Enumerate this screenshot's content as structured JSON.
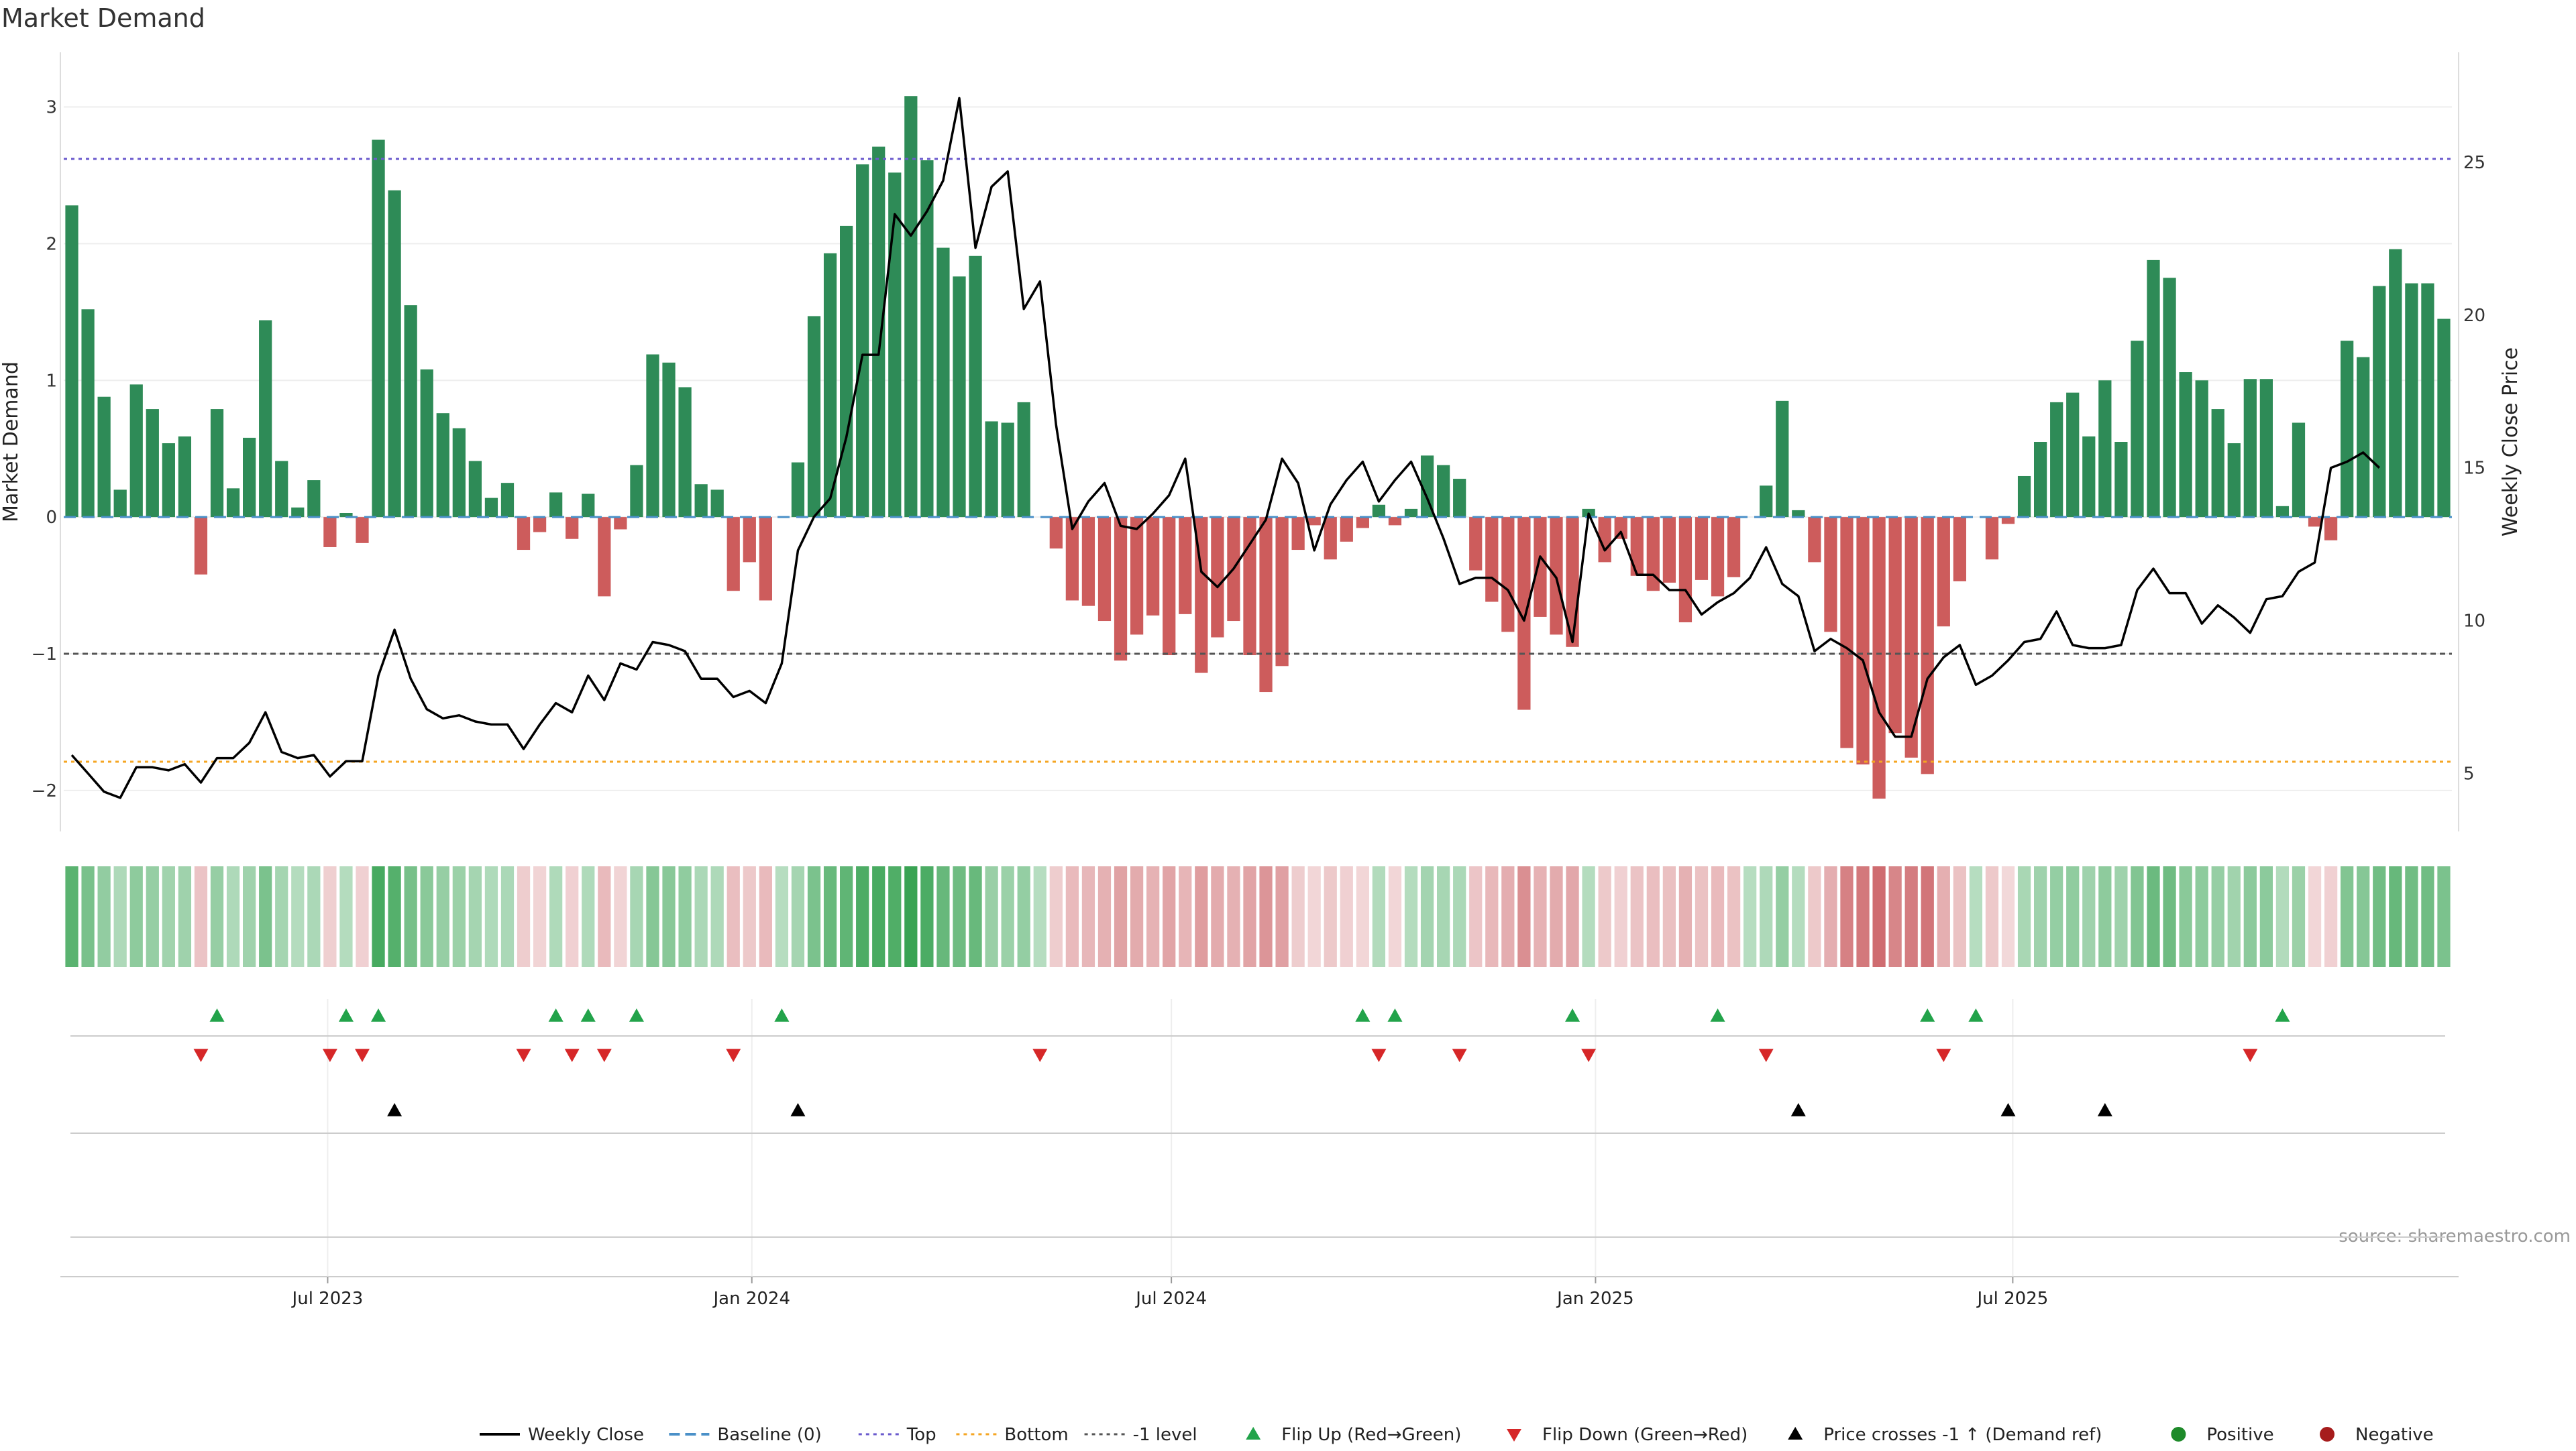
{
  "title": "Market Demand",
  "source_note": "source: sharemaestro.com",
  "colors": {
    "positive_bar": "#2e8b57",
    "negative_bar": "#cd5c5c",
    "price_line": "#000000",
    "top_level": "#6a5acd",
    "bottom_level": "#f5a623",
    "minus1_level": "#555555",
    "baseline": "#4a90c8",
    "flip_up": "#22a34a",
    "flip_down": "#d62728",
    "cross": "#000000",
    "positive_dot": "#1e8a2a",
    "negative_dot": "#a61c1c"
  },
  "legend": [
    {
      "label": "Weekly Close",
      "kind": "line",
      "color": "#000000"
    },
    {
      "label": "Baseline (0)",
      "kind": "dash",
      "color": "#4a90c8"
    },
    {
      "label": "Top",
      "kind": "dot",
      "color": "#6a5acd"
    },
    {
      "label": "Bottom",
      "kind": "dot",
      "color": "#f5a623"
    },
    {
      "label": "-1 level",
      "kind": "dot",
      "color": "#555555"
    },
    {
      "label": "Flip Up (Red→Green)",
      "kind": "tri-up",
      "color": "#22a34a"
    },
    {
      "label": "Flip Down (Green→Red)",
      "kind": "tri-down",
      "color": "#d62728"
    },
    {
      "label": "Price crosses -1 ↑ (Demand ref)",
      "kind": "tri-up",
      "color": "#000000"
    },
    {
      "label": "Positive",
      "kind": "circle",
      "color": "#1e8a2a"
    },
    {
      "label": "Negative",
      "kind": "circle",
      "color": "#a61c1c"
    }
  ],
  "chart_data": {
    "type": "bar",
    "frequency": "weekly",
    "x_start": "2023-03-12",
    "x_tick_labels": [
      "Jul 2023",
      "Jan 2024",
      "Jul 2024",
      "Jan 2025",
      "Jul 2025"
    ],
    "x_tick_dates": [
      "2023-07-01",
      "2024-01-01",
      "2024-07-01",
      "2025-01-01",
      "2025-07-01"
    ],
    "ylabel": "Market Demand",
    "y2label": "Weekly Close Price",
    "ylim": [
      -2.3,
      3.4
    ],
    "y_ticks": [
      -2,
      -1,
      0,
      1,
      2,
      3
    ],
    "y2lim": [
      3.1,
      28.6
    ],
    "y2_ticks": [
      5,
      10,
      15,
      20,
      25
    ],
    "levels": {
      "top": 2.62,
      "bottom": -1.79,
      "minus1": -1.0,
      "baseline": 0
    },
    "grid": true,
    "series": [
      {
        "name": "Market Demand",
        "kind": "bar",
        "values": [
          2.28,
          1.52,
          0.88,
          0.2,
          0.97,
          0.79,
          0.54,
          0.59,
          -0.42,
          0.79,
          0.21,
          0.58,
          1.44,
          0.41,
          0.07,
          0.27,
          -0.22,
          0.03,
          -0.19,
          2.76,
          2.39,
          1.55,
          1.08,
          0.76,
          0.65,
          0.41,
          0.14,
          0.25,
          -0.24,
          -0.11,
          0.18,
          -0.16,
          0.17,
          -0.58,
          -0.09,
          0.38,
          1.19,
          1.13,
          0.95,
          0.24,
          0.2,
          -0.54,
          -0.33,
          -0.61,
          0.0,
          0.4,
          1.47,
          1.93,
          2.13,
          2.58,
          2.71,
          2.52,
          3.08,
          2.61,
          1.97,
          1.76,
          1.91,
          0.7,
          0.69,
          0.84,
          0.0,
          -0.23,
          -0.61,
          -0.65,
          -0.76,
          -1.05,
          -0.86,
          -0.72,
          -1.01,
          -0.71,
          -1.14,
          -0.88,
          -0.76,
          -1.01,
          -1.28,
          -1.09,
          -0.24,
          -0.06,
          -0.31,
          -0.18,
          -0.08,
          0.09,
          -0.06,
          0.06,
          0.45,
          0.38,
          0.28,
          -0.39,
          -0.62,
          -0.84,
          -1.41,
          -0.73,
          -0.86,
          -0.95,
          0.06,
          -0.33,
          -0.16,
          -0.43,
          -0.54,
          -0.48,
          -0.77,
          -0.46,
          -0.58,
          -0.44,
          0.0,
          0.23,
          0.85,
          0.05,
          -0.33,
          -0.84,
          -1.69,
          -1.81,
          -2.06,
          -1.58,
          -1.76,
          -1.88,
          -0.8,
          -0.47,
          0.0,
          -0.31,
          -0.05,
          0.3,
          0.55,
          0.84,
          0.91,
          0.59,
          1.0,
          0.55,
          1.29,
          1.88,
          1.75,
          1.06,
          1.0,
          0.79,
          0.54,
          1.01,
          1.01,
          0.08,
          0.69,
          -0.07,
          -0.17,
          1.29,
          1.17,
          1.69,
          1.96,
          1.71,
          1.71,
          1.45
        ]
      },
      {
        "name": "Weekly Close",
        "kind": "line",
        "axis": "y2",
        "values": [
          5.6,
          5.0,
          4.4,
          4.2,
          5.2,
          5.2,
          5.1,
          5.3,
          4.7,
          5.5,
          5.5,
          6.0,
          7.0,
          5.7,
          5.5,
          5.6,
          4.9,
          5.4,
          5.4,
          8.2,
          9.7,
          8.1,
          7.1,
          6.8,
          6.9,
          6.7,
          6.6,
          6.6,
          5.8,
          6.6,
          7.3,
          7.0,
          8.2,
          7.4,
          8.6,
          8.4,
          9.3,
          9.2,
          9.0,
          8.1,
          8.1,
          7.5,
          7.7,
          7.3,
          8.6,
          12.3,
          13.4,
          14.0,
          16.0,
          18.7,
          18.7,
          23.3,
          22.6,
          23.4,
          24.4,
          27.1,
          22.2,
          24.2,
          24.7,
          20.2,
          21.1,
          16.4,
          13.0,
          13.9,
          14.5,
          13.1,
          13.0,
          13.5,
          14.1,
          15.3,
          11.6,
          11.1,
          11.7,
          12.5,
          13.3,
          15.3,
          14.5,
          12.3,
          13.8,
          14.6,
          15.2,
          13.9,
          14.6,
          15.2,
          14.0,
          12.7,
          11.2,
          11.4,
          11.4,
          11.0,
          10.0,
          12.1,
          11.4,
          9.3,
          13.5,
          12.3,
          12.9,
          11.5,
          11.5,
          11.0,
          11.0,
          10.2,
          10.6,
          10.9,
          11.4,
          12.4,
          11.2,
          10.8,
          9.0,
          9.4,
          9.1,
          8.7,
          7.0,
          6.2,
          6.2,
          8.1,
          8.8,
          9.2,
          7.9,
          8.2,
          8.7,
          9.3,
          9.4,
          10.3,
          9.2,
          9.1,
          9.1,
          9.2,
          11.0,
          11.7,
          10.9,
          10.9,
          9.9,
          10.5,
          10.1,
          9.6,
          10.7,
          10.8,
          11.6,
          11.9,
          15.0,
          15.2,
          15.5,
          15.0
        ]
      }
    ],
    "flip_up_weeks": [
      9,
      17,
      19,
      30,
      32,
      35,
      44,
      80,
      82,
      93,
      102,
      115,
      118,
      137
    ],
    "flip_down_weeks": [
      8,
      16,
      18,
      28,
      31,
      33,
      41,
      60,
      81,
      86,
      94,
      105,
      116,
      135
    ],
    "cross_up_weeks": [
      20,
      45,
      107,
      120,
      126
    ],
    "heat_strip": "green = positive demand, red = negative, intensity by magnitude"
  }
}
